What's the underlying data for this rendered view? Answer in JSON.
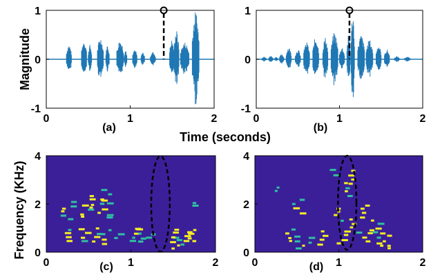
{
  "shared": {
    "xlabel": "Time (seconds)",
    "ylabel_top": "Magnitude",
    "ylabel_bottom": "Frequency (KHz)"
  },
  "colors": {
    "waveform": "#1f77b4",
    "spectrogram_bg": "#3b1f99",
    "spectrogram_hot": "#f5f020",
    "spectrogram_mid": "#2ec2a0"
  },
  "chart_data": [
    {
      "id": "a",
      "type": "line",
      "panel_label": "(a)",
      "xlim": [
        0,
        2
      ],
      "ylim": [
        -1,
        1
      ],
      "xticks": [
        "0",
        "1",
        "2"
      ],
      "yticks": [
        "-1",
        "0",
        "1"
      ],
      "marker_time": 1.4,
      "marker_magnitude": 1,
      "segments": [
        {
          "start": 0.24,
          "end": 0.3,
          "amp": 0.3
        },
        {
          "start": 0.42,
          "end": 0.48,
          "amp": 0.4
        },
        {
          "start": 0.5,
          "end": 0.54,
          "amp": 0.3
        },
        {
          "start": 0.61,
          "end": 0.68,
          "amp": 0.45
        },
        {
          "start": 0.71,
          "end": 0.75,
          "amp": 0.3
        },
        {
          "start": 0.84,
          "end": 0.92,
          "amp": 0.4
        },
        {
          "start": 0.93,
          "end": 0.96,
          "amp": 0.2
        },
        {
          "start": 1.03,
          "end": 1.08,
          "amp": 0.2
        },
        {
          "start": 1.13,
          "end": 1.17,
          "amp": 0.15
        },
        {
          "start": 1.24,
          "end": 1.3,
          "amp": 0.15
        },
        {
          "start": 1.47,
          "end": 1.52,
          "amp": 0.4
        },
        {
          "start": 1.52,
          "end": 1.58,
          "amp": 0.6
        },
        {
          "start": 1.6,
          "end": 1.7,
          "amp": 0.35
        },
        {
          "start": 1.74,
          "end": 1.82,
          "amp": 0.98
        }
      ]
    },
    {
      "id": "b",
      "type": "line",
      "panel_label": "(b)",
      "xlim": [
        0,
        2
      ],
      "ylim": [
        -1,
        1
      ],
      "xticks": [
        "0",
        "1",
        "2"
      ],
      "yticks": [
        "-1",
        "0",
        "1"
      ],
      "marker_time": 1.12,
      "marker_magnitude": 1,
      "segments": [
        {
          "start": 0.07,
          "end": 0.12,
          "amp": 0.06
        },
        {
          "start": 0.15,
          "end": 0.2,
          "amp": 0.07
        },
        {
          "start": 0.22,
          "end": 0.26,
          "amp": 0.05
        },
        {
          "start": 0.28,
          "end": 0.33,
          "amp": 0.1
        },
        {
          "start": 0.36,
          "end": 0.42,
          "amp": 0.25
        },
        {
          "start": 0.47,
          "end": 0.53,
          "amp": 0.2
        },
        {
          "start": 0.57,
          "end": 0.64,
          "amp": 0.35
        },
        {
          "start": 0.68,
          "end": 0.75,
          "amp": 0.45
        },
        {
          "start": 0.8,
          "end": 0.86,
          "amp": 0.45
        },
        {
          "start": 0.9,
          "end": 0.98,
          "amp": 0.55
        },
        {
          "start": 1.0,
          "end": 1.06,
          "amp": 0.25
        },
        {
          "start": 1.09,
          "end": 1.13,
          "amp": 0.5
        },
        {
          "start": 1.14,
          "end": 1.18,
          "amp": 0.95
        },
        {
          "start": 1.22,
          "end": 1.3,
          "amp": 0.5
        },
        {
          "start": 1.32,
          "end": 1.4,
          "amp": 0.4
        },
        {
          "start": 1.44,
          "end": 1.5,
          "amp": 0.3
        },
        {
          "start": 1.54,
          "end": 1.6,
          "amp": 0.2
        },
        {
          "start": 1.66,
          "end": 1.72,
          "amp": 0.06
        },
        {
          "start": 1.78,
          "end": 1.85,
          "amp": 0.05
        }
      ]
    },
    {
      "id": "c",
      "type": "heatmap",
      "panel_label": "(c)",
      "xlim": [
        0,
        2
      ],
      "ylim": [
        0,
        4
      ],
      "xticks": [
        "0",
        "1",
        "2"
      ],
      "yticks": [
        "0",
        "2",
        "4"
      ],
      "ellipse": {
        "t_center": 1.35,
        "f_center": 2.0,
        "t_radius": 0.11,
        "f_radius": 1.98
      },
      "blobs": [
        {
          "t": 0.25,
          "f": 1.5,
          "hot": true
        },
        {
          "t": 0.28,
          "f": 1.9,
          "hot": false
        },
        {
          "t": 0.48,
          "f": 1.6,
          "hot": true
        },
        {
          "t": 0.52,
          "f": 2.0,
          "hot": true
        },
        {
          "t": 0.68,
          "f": 1.8,
          "hot": true
        },
        {
          "t": 0.72,
          "f": 2.2,
          "hot": true
        },
        {
          "t": 0.75,
          "f": 1.4,
          "hot": false
        },
        {
          "t": 0.25,
          "f": 0.6,
          "hot": true
        },
        {
          "t": 0.45,
          "f": 0.6,
          "hot": true
        },
        {
          "t": 0.62,
          "f": 0.6,
          "hot": true
        },
        {
          "t": 0.72,
          "f": 0.55,
          "hot": true
        },
        {
          "t": 0.86,
          "f": 0.6,
          "hot": false
        },
        {
          "t": 1.05,
          "f": 0.6,
          "hot": true
        },
        {
          "t": 1.12,
          "f": 0.6,
          "hot": true
        },
        {
          "t": 1.25,
          "f": 0.6,
          "hot": false
        },
        {
          "t": 1.5,
          "f": 0.6,
          "hot": true
        },
        {
          "t": 1.55,
          "f": 0.3,
          "hot": true
        },
        {
          "t": 1.65,
          "f": 0.5,
          "hot": true
        },
        {
          "t": 1.75,
          "f": 0.6,
          "hot": true
        },
        {
          "t": 1.78,
          "f": 1.9,
          "hot": false
        }
      ]
    },
    {
      "id": "d",
      "type": "heatmap",
      "panel_label": "(d)",
      "xlim": [
        0,
        2
      ],
      "ylim": [
        0,
        4
      ],
      "xticks": [
        "0",
        "1",
        "2"
      ],
      "yticks": [
        "0",
        "2",
        "4"
      ],
      "ellipse": {
        "t_center": 1.1,
        "f_center": 2.05,
        "t_radius": 0.11,
        "f_radius": 1.95
      },
      "blobs": [
        {
          "t": 0.3,
          "f": 2.5,
          "hot": false
        },
        {
          "t": 0.42,
          "f": 0.6,
          "hot": true
        },
        {
          "t": 0.52,
          "f": 1.8,
          "hot": true
        },
        {
          "t": 0.55,
          "f": 0.3,
          "hot": true
        },
        {
          "t": 0.72,
          "f": 0.4,
          "hot": false
        },
        {
          "t": 0.82,
          "f": 0.5,
          "hot": true
        },
        {
          "t": 0.95,
          "f": 3.2,
          "hot": false
        },
        {
          "t": 1.02,
          "f": 1.5,
          "hot": true
        },
        {
          "t": 1.05,
          "f": 0.5,
          "hot": true
        },
        {
          "t": 1.12,
          "f": 2.5,
          "hot": true
        },
        {
          "t": 1.15,
          "f": 3.0,
          "hot": true
        },
        {
          "t": 1.2,
          "f": 1.0,
          "hot": true
        },
        {
          "t": 1.3,
          "f": 1.6,
          "hot": true
        },
        {
          "t": 1.35,
          "f": 0.6,
          "hot": true
        },
        {
          "t": 1.45,
          "f": 1.0,
          "hot": true
        },
        {
          "t": 1.52,
          "f": 0.4,
          "hot": true
        },
        {
          "t": 1.6,
          "f": 0.3,
          "hot": true
        }
      ]
    }
  ]
}
